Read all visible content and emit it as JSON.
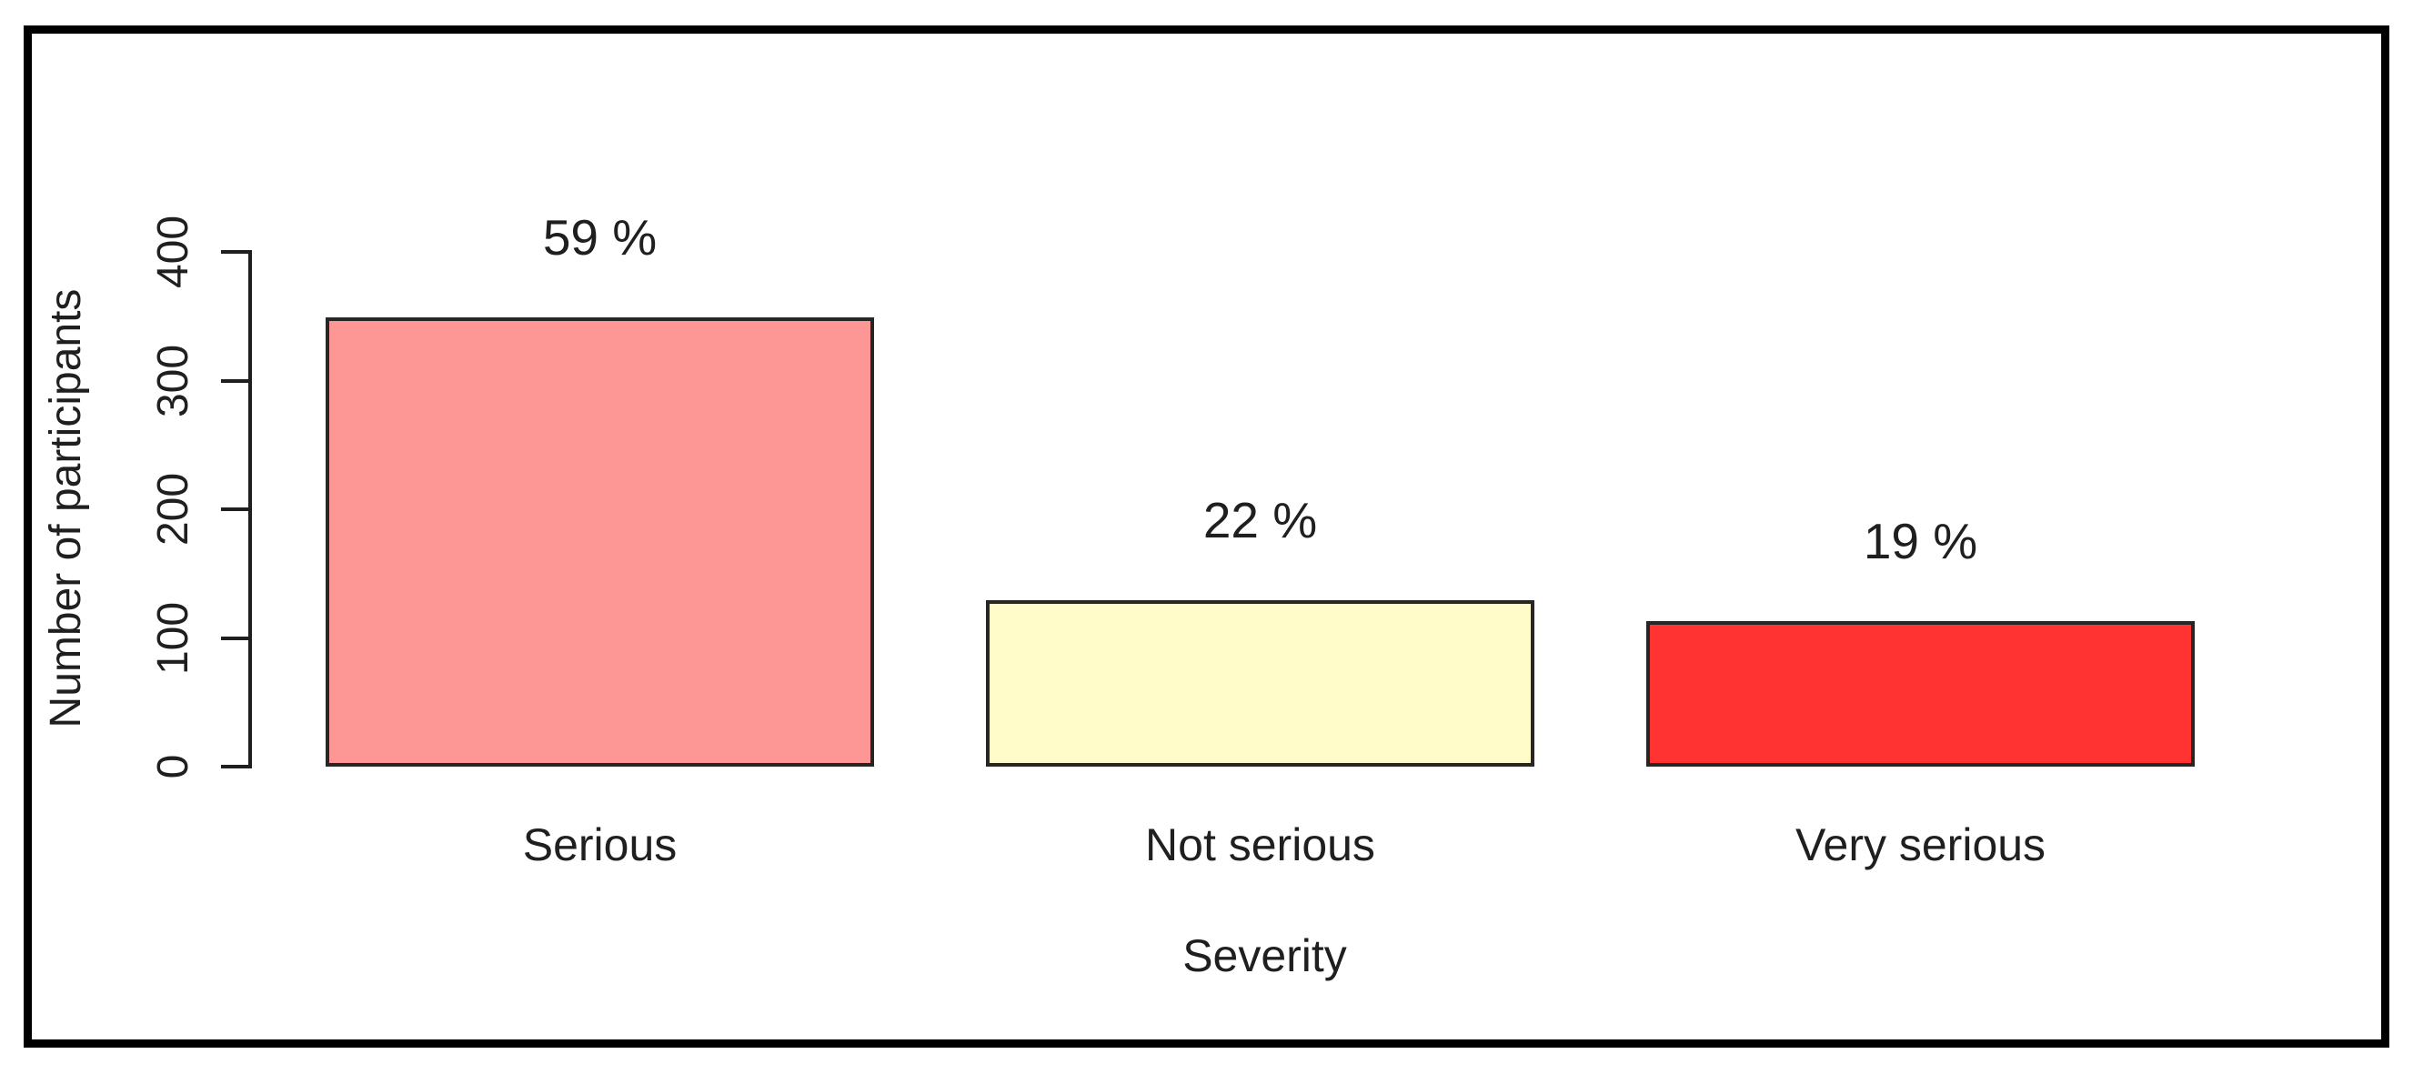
{
  "chart_data": {
    "type": "bar",
    "title": "",
    "xlabel": "Severity",
    "ylabel": "Number of participants",
    "categories": [
      "Serious",
      "Not serious",
      "Very serious"
    ],
    "values": [
      349,
      129,
      113
    ],
    "bar_labels": [
      "59 %",
      "22 %",
      "19 %"
    ],
    "bar_colors": [
      "#FD9795",
      "#FFFCC9",
      "#FE3332"
    ],
    "bar_border_color": "#262626",
    "y_ticks": [
      0,
      100,
      200,
      300,
      400
    ],
    "y_tick_labels": [
      "0",
      "100",
      "200",
      "300",
      "400"
    ],
    "ylim": [
      0,
      400
    ],
    "grid": false,
    "legend": null,
    "axis_color": "#1f1f1f",
    "text_color": "#1f1f1f",
    "background_color": "#ffffff",
    "frame_color": "#000000"
  }
}
